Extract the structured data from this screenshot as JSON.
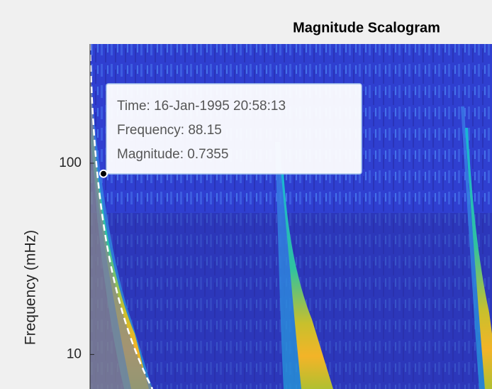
{
  "chart_data": {
    "type": "scalogram",
    "title": "Magnitude Scalogram",
    "y_label": "Frequency (mHz)",
    "y_scale": "log",
    "ylim": [
      6.6,
      420
    ],
    "yticks": [
      10,
      100
    ],
    "datatip": [
      {
        "label": "Time:",
        "value": "16-Jan-1995 20:58:13"
      },
      {
        "label": "Frequency:",
        "value": 88.15
      },
      {
        "label": "Magnitude:",
        "value": 0.7355
      }
    ]
  }
}
